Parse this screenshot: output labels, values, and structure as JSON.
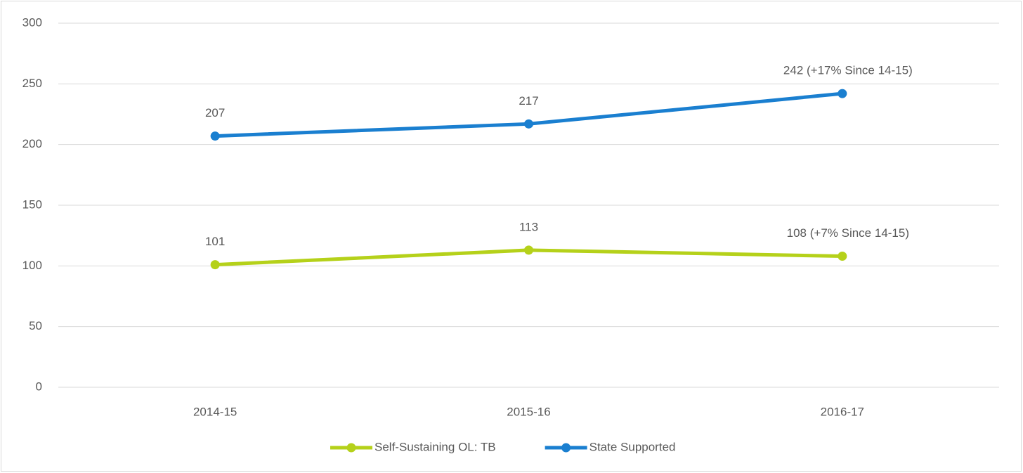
{
  "chart_data": {
    "type": "line",
    "categories": [
      "2014-15",
      "2015-16",
      "2016-17"
    ],
    "series": [
      {
        "name": "Self-Sustaining OL: TB",
        "color": "#b5d11a",
        "values": [
          101,
          113,
          108
        ],
        "value_labels": [
          "101",
          "113",
          "108 (+7% Since 14-15)"
        ]
      },
      {
        "name": "State Supported",
        "color": "#1a7fd0",
        "values": [
          207,
          217,
          242
        ],
        "value_labels": [
          "207",
          "217",
          "242 (+17% Since 14-15)"
        ]
      }
    ],
    "ylim": [
      0,
      300
    ],
    "yticks": [
      0,
      50,
      100,
      150,
      200,
      250,
      300
    ],
    "grid": true,
    "legend": "bottom"
  }
}
